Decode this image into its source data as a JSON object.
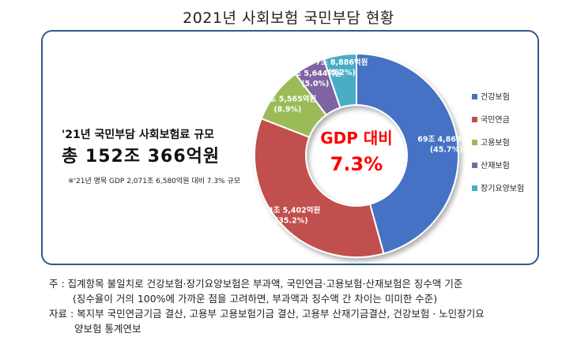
{
  "title": "2021년 사회보험 국민부담 현황",
  "summary": {
    "heading": "'21년 국민부담 사회보험료 규모",
    "total": "총 152조 366억원",
    "note": "※'21년 명목 GDP 2,071조 6,580억원 대비 7.3% 규모"
  },
  "center": {
    "label": "GDP 대비",
    "value": "7.3%"
  },
  "chart_data": {
    "type": "pie",
    "categories": [
      "건강보험",
      "국민연금",
      "고용보험",
      "산재보험",
      "장기요양보험"
    ],
    "values": [
      45.7,
      35.2,
      8.9,
      5.0,
      5.2
    ],
    "amount_labels": [
      "69조 4,869억원",
      "53조 5,402억원",
      "13조 5,565억원",
      "7조 5,644억원",
      "7조 8,886억원"
    ],
    "percent_labels": [
      "(45.7%)",
      "(35.2%)",
      "(8.9%)",
      "(5.0%)",
      "(5.2%)"
    ],
    "colors": [
      "#4472c4",
      "#c0504d",
      "#9bbb59",
      "#8064a2",
      "#4bacc6"
    ],
    "legend_position": "right"
  },
  "notes": {
    "line1": "주 : 집계항목 불일치로 건강보험·장기요양보험은 부과액, 국민연금·고용보험·산재보험은 징수액 기준",
    "line2": "(징수율이 거의 100%에 가까운 점을 고려하면, 부과액과 징수액 간 차이는 미미한 수준)",
    "line3": "자료 : 복지부 국민연금기금 결산, 고용부 고용보험기금 결산, 고용부 산재기금결산, 건강보험 · 노인장기요",
    "line4": "양보험 통계연보"
  }
}
